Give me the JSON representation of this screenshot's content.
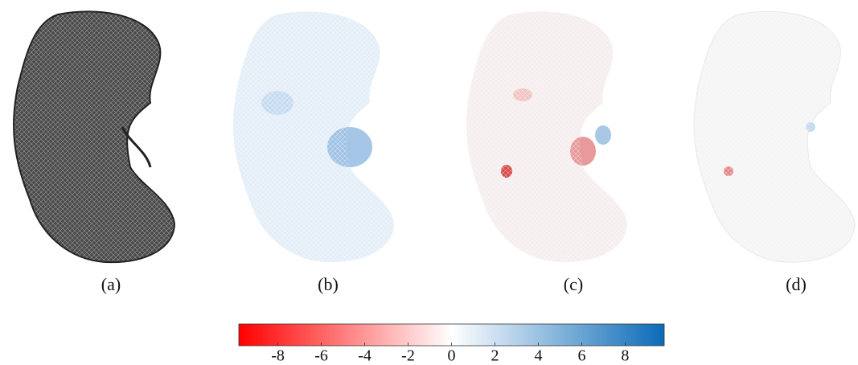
{
  "panels": [
    {
      "label": "(a)"
    },
    {
      "label": "(b)"
    },
    {
      "label": "(c)"
    },
    {
      "label": "(d)"
    }
  ],
  "colorbar": {
    "clim": [
      -9.8,
      9.8
    ],
    "ticks": [
      -8,
      -6,
      -4,
      -2,
      0,
      2,
      4,
      6,
      8
    ],
    "colors": [
      "#ff0000",
      "#ffffff",
      "#0a6ab8"
    ]
  }
}
